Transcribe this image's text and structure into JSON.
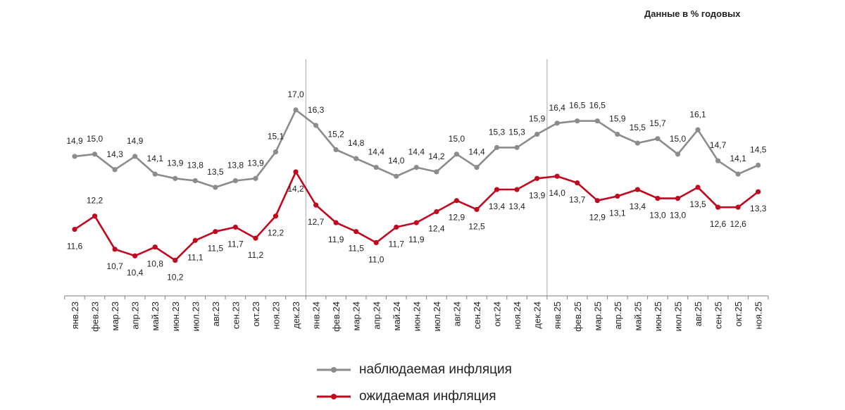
{
  "units_note": "Данные в % годовых",
  "colors": {
    "observed": "#8c8c8c",
    "expected": "#c0081f",
    "axis": "#7f7f7f",
    "separator": "#a6a6a6",
    "text": "#222222"
  },
  "chart_data": {
    "type": "line",
    "title": "",
    "xlabel": "",
    "ylabel": "",
    "grid": false,
    "legend_position": "bottom-center",
    "categories": [
      "янв.23",
      "фев.23",
      "мар.23",
      "апр.23",
      "май.23",
      "июн.23",
      "июл.23",
      "авг.23",
      "сен.23",
      "окт.23",
      "ноя.23",
      "дек.23",
      "янв.24",
      "фев.24",
      "мар.24",
      "апр.24",
      "май.24",
      "июн.24",
      "июл.24",
      "авг.24",
      "сен.24",
      "окт.24",
      "ноя.24",
      "дек.24",
      "янв.25",
      "фев.25",
      "мар.25",
      "апр.25",
      "май.25",
      "июн.25",
      "июл.25",
      "авг.25",
      "сен.25",
      "окт.25",
      "ноя.25"
    ],
    "series": [
      {
        "name": "наблюдаемая инфляция",
        "values": [
          14.9,
          15.0,
          14.3,
          14.9,
          14.1,
          13.9,
          13.8,
          13.5,
          13.8,
          13.9,
          15.1,
          17.0,
          16.3,
          15.2,
          14.8,
          14.4,
          14.0,
          14.4,
          14.2,
          15.0,
          14.4,
          15.3,
          15.3,
          15.9,
          16.4,
          16.5,
          16.5,
          15.9,
          15.5,
          15.7,
          15.0,
          16.1,
          14.7,
          14.1,
          14.5
        ],
        "labels": [
          "14,9",
          "15,0",
          "14,3",
          "14,9",
          "14,1",
          "13,9",
          "13,8",
          "13,5",
          "13,8",
          "13,9",
          "15,1",
          "17,0",
          "16,3",
          "15,2",
          "14,8",
          "14,4",
          "14,0",
          "14,4",
          "14,2",
          "15,0",
          "14,4",
          "15,3",
          "15,3",
          "15,9",
          "16,4",
          "16,5",
          "16,5",
          "15,9",
          "15,5",
          "15,7",
          "15,0",
          "16,1",
          "14,7",
          "14,1",
          "14,5"
        ]
      },
      {
        "name": "ожидаемая инфляция",
        "values": [
          11.6,
          12.2,
          10.7,
          10.4,
          10.8,
          10.2,
          11.1,
          11.5,
          11.7,
          11.2,
          12.2,
          14.2,
          12.7,
          11.9,
          11.5,
          11.0,
          11.7,
          11.9,
          12.4,
          12.9,
          12.5,
          13.4,
          13.4,
          13.9,
          14.0,
          13.7,
          12.9,
          13.1,
          13.4,
          13.0,
          13.0,
          13.5,
          12.6,
          12.6,
          13.3
        ],
        "labels": [
          "11,6",
          "12,2",
          "10,7",
          "10,4",
          "10,8",
          "10,2",
          "11,1",
          "11,5",
          "11,7",
          "11,2",
          "12,2",
          "14,2",
          "12,7",
          "11,9",
          "11,5",
          "11,0",
          "11,7",
          "11,9",
          "12,4",
          "12,9",
          "12,5",
          "13,4",
          "13,4",
          "13,9",
          "14,0",
          "13,7",
          "12,9",
          "13,1",
          "13,4",
          "13,0",
          "13,0",
          "13,5",
          "12,6",
          "12,6",
          "13,3"
        ]
      }
    ],
    "year_separators_after": [
      "дек.23",
      "дек.24"
    ]
  }
}
